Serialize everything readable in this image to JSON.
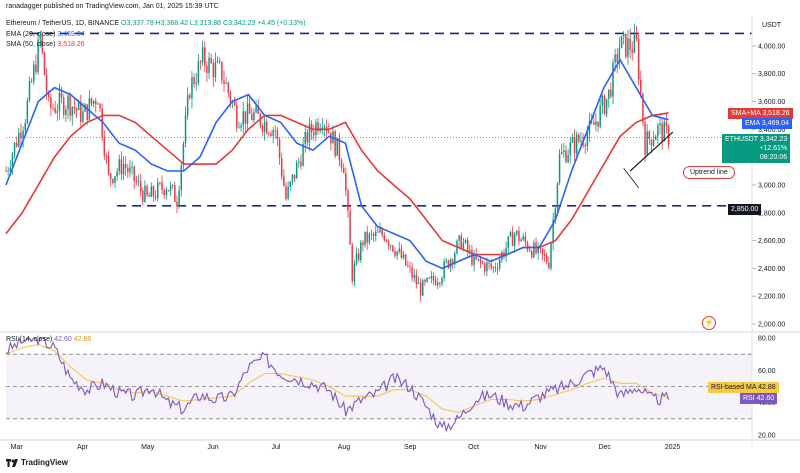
{
  "header": {
    "published": "ranadagger published on TradingView.com, Jan 01, 2025 15:39 UTC",
    "symbol": "Ethereum / TetherUS, 1D, BINANCE",
    "ohlc": "O3,337.78  H3,368.42  L3,313.88  C3,342.23  +4.45 (+0.13%)",
    "ema_legend": "EMA (20, close)",
    "ema_value": "3,469.04",
    "sma_legend": "SMA (50, close)",
    "sma_value": "3,518.26",
    "currency": "USDT"
  },
  "price_tags": {
    "sma": {
      "label": "SMA+MA",
      "value": "3,518.26"
    },
    "ema": {
      "label": "EMA",
      "value": "3,469.04"
    },
    "last": {
      "label": "ETHUSDT",
      "value": "3,342.23",
      "change": "+12.61%",
      "time": "08:20:06"
    },
    "support": {
      "value": "2,850.00"
    }
  },
  "annotations": {
    "uptrend": "Uptrend line"
  },
  "rsi": {
    "legend": "RSI (14, close)",
    "v1": "42.60",
    "v2": "42.88",
    "ma_label": "RSI-based MA",
    "ma_value": "42.88",
    "rsi_label": "RSI",
    "rsi_value": "42.60"
  },
  "footer": {
    "brand": "TradingView"
  },
  "colors": {
    "up": "#089981",
    "down": "#f23645",
    "ema": "#2962ff",
    "sma": "#e53935",
    "rsi": "#7e57c2",
    "rsi_ma": "#f7c948",
    "dash": "#1e2a78"
  },
  "chart_data": [
    {
      "type": "candlestick",
      "title": "Ethereum / TetherUS, 1D, BINANCE",
      "ylabel": "USDT",
      "ylim": [
        2000,
        4100
      ],
      "y_ticks": [
        "4,000.00",
        "3,800.00",
        "3,600.00",
        "3,400.00",
        "3,200.00",
        "3,000.00",
        "2,800.00",
        "2,600.00",
        "2,400.00",
        "2,200.00",
        "2,000.00"
      ],
      "x_ticks": [
        "Mar",
        "Apr",
        "May",
        "Jun",
        "Jul",
        "Aug",
        "Sep",
        "Oct",
        "Nov",
        "Dec",
        "2025"
      ],
      "horizontal_levels": [
        4090,
        2850
      ],
      "support_level": 2850,
      "resistance_level": 4090,
      "close_path": [
        {
          "t": "Feb 25",
          "v": 3100
        },
        {
          "t": "Mar 05",
          "v": 3500
        },
        {
          "t": "Mar 12",
          "v": 4050
        },
        {
          "t": "Mar 16",
          "v": 3550
        },
        {
          "t": "Mar 25",
          "v": 3600
        },
        {
          "t": "Apr 01",
          "v": 3500
        },
        {
          "t": "Apr 08",
          "v": 3650
        },
        {
          "t": "Apr 13",
          "v": 3050
        },
        {
          "t": "Apr 20",
          "v": 3150
        },
        {
          "t": "May 01",
          "v": 2900
        },
        {
          "t": "May 10",
          "v": 3000
        },
        {
          "t": "May 15",
          "v": 2900
        },
        {
          "t": "May 21",
          "v": 3700
        },
        {
          "t": "May 27",
          "v": 3900
        },
        {
          "t": "Jun 05",
          "v": 3800
        },
        {
          "t": "Jun 12",
          "v": 3500
        },
        {
          "t": "Jun 20",
          "v": 3500
        },
        {
          "t": "Jun 30",
          "v": 3400
        },
        {
          "t": "Jul 05",
          "v": 2900
        },
        {
          "t": "Jul 15",
          "v": 3350
        },
        {
          "t": "Jul 22",
          "v": 3500
        },
        {
          "t": "Aug 01",
          "v": 3150
        },
        {
          "t": "Aug 05",
          "v": 2350
        },
        {
          "t": "Aug 10",
          "v": 2600
        },
        {
          "t": "Aug 20",
          "v": 2650
        },
        {
          "t": "Aug 27",
          "v": 2500
        },
        {
          "t": "Sep 06",
          "v": 2250
        },
        {
          "t": "Sep 15",
          "v": 2350
        },
        {
          "t": "Sep 25",
          "v": 2600
        },
        {
          "t": "Oct 01",
          "v": 2450
        },
        {
          "t": "Oct 10",
          "v": 2400
        },
        {
          "t": "Oct 20",
          "v": 2650
        },
        {
          "t": "Oct 31",
          "v": 2500
        },
        {
          "t": "Nov 05",
          "v": 2450
        },
        {
          "t": "Nov 10",
          "v": 3200
        },
        {
          "t": "Nov 25",
          "v": 3400
        },
        {
          "t": "Dec 03",
          "v": 3650
        },
        {
          "t": "Dec 08",
          "v": 4000
        },
        {
          "t": "Dec 16",
          "v": 4000
        },
        {
          "t": "Dec 20",
          "v": 3300
        },
        {
          "t": "Dec 26",
          "v": 3400
        },
        {
          "t": "Jan 01",
          "v": 3342
        }
      ],
      "series": [
        {
          "name": "EMA (20, close)",
          "last": 3469.04,
          "values": [
            3000,
            3300,
            3600,
            3700,
            3650,
            3550,
            3450,
            3300,
            3250,
            3150,
            3100,
            3100,
            3200,
            3450,
            3600,
            3650,
            3500,
            3450,
            3300,
            3250,
            3350,
            3300,
            2850,
            2700,
            2650,
            2600,
            2450,
            2400,
            2450,
            2500,
            2450,
            2500,
            2550,
            2550,
            2750,
            3100,
            3400,
            3700,
            3900,
            3700,
            3500,
            3469
          ]
        },
        {
          "name": "SMA (50, close)",
          "last": 3518.26,
          "values": [
            2650,
            2800,
            3000,
            3200,
            3350,
            3450,
            3500,
            3500,
            3450,
            3350,
            3250,
            3150,
            3150,
            3150,
            3250,
            3400,
            3500,
            3500,
            3450,
            3400,
            3400,
            3450,
            3250,
            3100,
            3000,
            2900,
            2750,
            2600,
            2550,
            2500,
            2500,
            2500,
            2550,
            2550,
            2600,
            2750,
            2950,
            3150,
            3350,
            3450,
            3500,
            3518
          ]
        }
      ],
      "last_close": 3342.23
    },
    {
      "type": "line",
      "title": "RSI (14, close)",
      "ylim": [
        20,
        80
      ],
      "y_ticks": [
        "80.00",
        "60.00",
        "40.00",
        "20.00"
      ],
      "bands": [
        70,
        50,
        30
      ],
      "series": [
        {
          "name": "RSI",
          "last": 42.6,
          "values": [
            72,
            78,
            80,
            74,
            55,
            48,
            52,
            46,
            44,
            50,
            40,
            36,
            45,
            42,
            44,
            62,
            68,
            58,
            55,
            52,
            48,
            35,
            42,
            46,
            55,
            50,
            38,
            24,
            30,
            42,
            45,
            40,
            38,
            44,
            48,
            52,
            58,
            62,
            44,
            50,
            42,
            42.6
          ]
        },
        {
          "name": "RSI-based MA",
          "last": 42.88,
          "values": [
            70,
            74,
            76,
            72,
            62,
            54,
            52,
            48,
            46,
            47,
            44,
            41,
            42,
            43,
            44,
            52,
            58,
            58,
            56,
            54,
            50,
            44,
            44,
            44,
            48,
            48,
            44,
            36,
            34,
            38,
            42,
            42,
            41,
            42,
            45,
            48,
            52,
            55,
            52,
            52,
            46,
            42.88
          ]
        }
      ]
    }
  ]
}
